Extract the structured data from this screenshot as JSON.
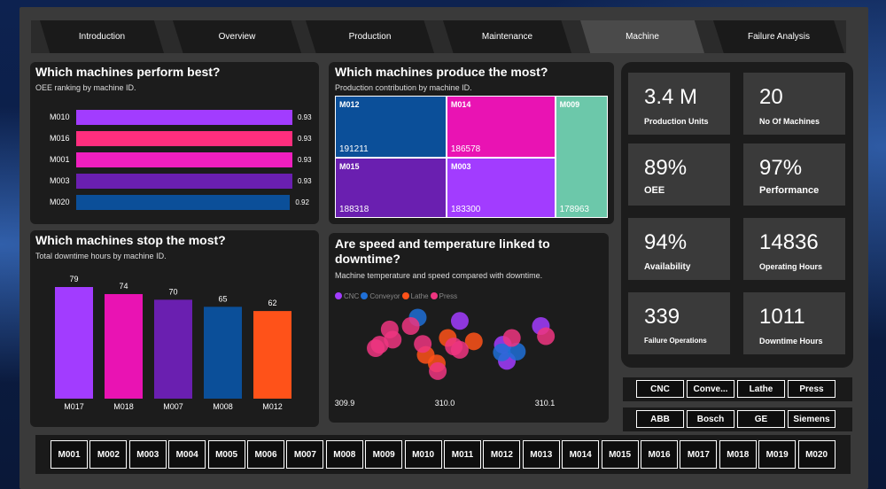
{
  "tabs": [
    {
      "label": "Introduction",
      "active": false
    },
    {
      "label": "Overview",
      "active": false
    },
    {
      "label": "Production",
      "active": false
    },
    {
      "label": "Maintenance",
      "active": false
    },
    {
      "label": "Machine",
      "active": true
    },
    {
      "label": "Failure Analysis",
      "active": false
    }
  ],
  "perform": {
    "title": "Which machines perform best?",
    "subtitle": "OEE ranking by machine ID.",
    "chart_data": {
      "type": "bar",
      "orientation": "horizontal",
      "categories": [
        "M010",
        "M016",
        "M001",
        "M003",
        "M020"
      ],
      "values": [
        0.93,
        0.93,
        0.93,
        0.93,
        0.92
      ],
      "value_labels": [
        "0.93",
        "0.93",
        "0.93",
        "0.93",
        "0.92"
      ],
      "colors": [
        "#a23cff",
        "#ff2e7e",
        "#f01fbf",
        "#6a1fb0",
        "#0b4f99"
      ],
      "xlim": [
        0,
        0.93
      ]
    }
  },
  "produce": {
    "title": "Which machines produce the most?",
    "subtitle": "Production contribution by machine ID.",
    "chart_data": {
      "type": "treemap",
      "items": [
        {
          "name": "M012",
          "value": 191211,
          "value_label": "191211",
          "color": "#0b4f99"
        },
        {
          "name": "M014",
          "value": 186578,
          "value_label": "186578",
          "color": "#e913b3"
        },
        {
          "name": "M009",
          "value": 178963,
          "value_label": "178963",
          "color": "#6cc8aa"
        },
        {
          "name": "M015",
          "value": 188318,
          "value_label": "188318",
          "color": "#6a1fb0"
        },
        {
          "name": "M003",
          "value": 183300,
          "value_label": "183300",
          "color": "#a23cff"
        }
      ]
    }
  },
  "stop": {
    "title": "Which machines stop the most?",
    "subtitle": "Total downtime hours by machine ID.",
    "chart_data": {
      "type": "bar",
      "categories": [
        "M017",
        "M018",
        "M007",
        "M008",
        "M012"
      ],
      "values": [
        79,
        74,
        70,
        65,
        62
      ],
      "value_labels": [
        "79",
        "74",
        "70",
        "65",
        "62"
      ],
      "colors": [
        "#a23cff",
        "#e913b3",
        "#6a1fb0",
        "#0b4f99",
        "#ff5219"
      ],
      "ylim": [
        0,
        79
      ]
    }
  },
  "linked": {
    "title_line1": "Are speed and temperature linked to",
    "title_line2": "downtime?",
    "subtitle": "Machine temperature and speed compared with downtime.",
    "chart_data": {
      "type": "scatter",
      "xlim": [
        309.9,
        310.1
      ],
      "ylim": [
        0,
        1
      ],
      "x_ticks": [
        "309.9",
        "310.0",
        "310.1"
      ],
      "series": [
        {
          "name": "CNC",
          "color": "#a23cff",
          "points": [
            [
              310.015,
              0.82
            ],
            [
              310.058,
              0.54
            ],
            [
              310.096,
              0.76
            ],
            [
              310.062,
              0.35
            ]
          ]
        },
        {
          "name": "Conveyor",
          "color": "#1f6fd6",
          "points": [
            [
              309.973,
              0.86
            ],
            [
              310.072,
              0.46
            ],
            [
              310.057,
              0.45
            ]
          ]
        },
        {
          "name": "Lathe",
          "color": "#ff5219",
          "points": [
            [
              310.003,
              0.62
            ],
            [
              310.029,
              0.58
            ],
            [
              309.992,
              0.32
            ],
            [
              309.981,
              0.42
            ]
          ]
        },
        {
          "name": "Press",
          "color": "#ee3580",
          "points": [
            [
              309.945,
              0.72
            ],
            [
              309.966,
              0.76
            ],
            [
              309.948,
              0.6
            ],
            [
              309.935,
              0.54
            ],
            [
              309.931,
              0.5
            ],
            [
              309.978,
              0.55
            ],
            [
              310.009,
              0.52
            ],
            [
              310.015,
              0.48
            ],
            [
              310.067,
              0.62
            ],
            [
              310.101,
              0.64
            ],
            [
              309.993,
              0.23
            ]
          ]
        }
      ]
    }
  },
  "kpis": [
    {
      "value": "3.4 M",
      "label": "Production Units"
    },
    {
      "value": "20",
      "label": "No Of Machines"
    },
    {
      "value": "89%",
      "label": "OEE"
    },
    {
      "value": "97%",
      "label": "Performance"
    },
    {
      "value": "94%",
      "label": "Availability"
    },
    {
      "value": "14836",
      "label": "Operating Hours"
    },
    {
      "value": "339",
      "label": "Failure Operations"
    },
    {
      "value": "1011",
      "label": "Downtime Hours"
    }
  ],
  "machine_types": [
    "CNC",
    "Conve...",
    "Lathe",
    "Press"
  ],
  "manufacturers": [
    "ABB",
    "Bosch",
    "GE",
    "Siemens"
  ],
  "machines": [
    "M001",
    "M002",
    "M003",
    "M004",
    "M005",
    "M006",
    "M007",
    "M008",
    "M009",
    "M010",
    "M011",
    "M012",
    "M013",
    "M014",
    "M015",
    "M016",
    "M017",
    "M018",
    "M019",
    "M020"
  ]
}
